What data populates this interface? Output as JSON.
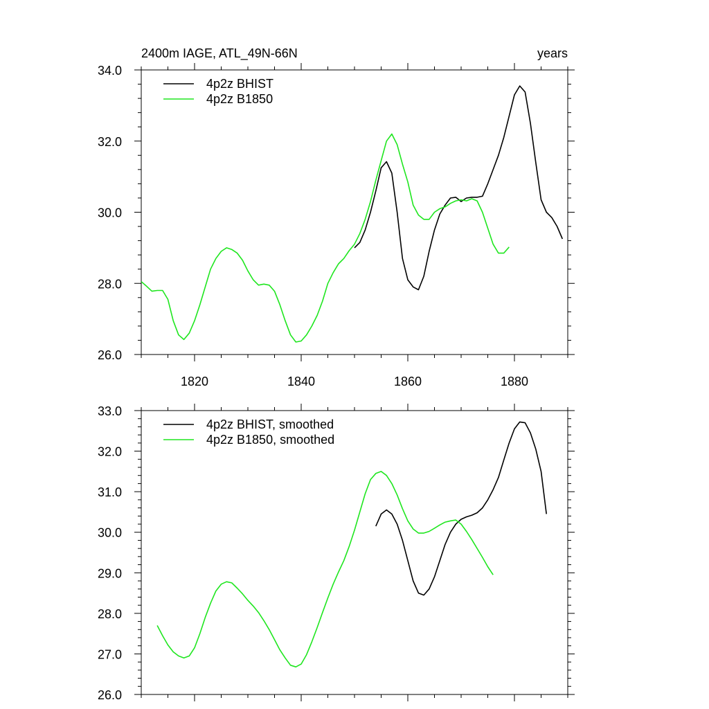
{
  "chart_data": [
    {
      "type": "line",
      "title": "2400m IAGE, ATL_49N-66N",
      "title_right": "years",
      "xlim": [
        1810,
        1890
      ],
      "ylim": [
        26.0,
        34.0
      ],
      "xticks": [
        1820,
        1840,
        1860,
        1880
      ],
      "xtick_labels": [
        "1820",
        "1840",
        "1860",
        "1880"
      ],
      "yticks": [
        26.0,
        28.0,
        30.0,
        32.0,
        34.0
      ],
      "ytick_labels": [
        "26.0",
        "28.0",
        "30.0",
        "32.0",
        "34.0"
      ],
      "legend_position": "top-left",
      "series": [
        {
          "name": "4p2z BHIST",
          "color": "#000000",
          "x": [
            1850,
            1851,
            1852,
            1853,
            1854,
            1855,
            1856,
            1857,
            1858,
            1859,
            1860,
            1861,
            1862,
            1863,
            1864,
            1865,
            1866,
            1867,
            1868,
            1869,
            1870,
            1871,
            1872,
            1873,
            1874,
            1875,
            1876,
            1877,
            1878,
            1879,
            1880,
            1881,
            1882,
            1883,
            1884,
            1885,
            1886,
            1887,
            1888,
            1889
          ],
          "values": [
            29.0,
            29.15,
            29.5,
            30.0,
            30.6,
            31.25,
            31.42,
            31.1,
            30.0,
            28.7,
            28.1,
            27.9,
            27.82,
            28.2,
            28.9,
            29.5,
            29.95,
            30.2,
            30.4,
            30.42,
            30.3,
            30.4,
            30.42,
            30.42,
            30.45,
            30.8,
            31.2,
            31.6,
            32.1,
            32.7,
            33.3,
            33.55,
            33.38,
            32.5,
            31.4,
            30.35,
            30.0,
            29.85,
            29.6,
            29.25
          ]
        },
        {
          "name": "4p2z B1850",
          "color": "#1ee61e",
          "x": [
            1810,
            1811,
            1812,
            1813,
            1814,
            1815,
            1816,
            1817,
            1818,
            1819,
            1820,
            1821,
            1822,
            1823,
            1824,
            1825,
            1826,
            1827,
            1828,
            1829,
            1830,
            1831,
            1832,
            1833,
            1834,
            1835,
            1836,
            1837,
            1838,
            1839,
            1840,
            1841,
            1842,
            1843,
            1844,
            1845,
            1846,
            1847,
            1848,
            1849,
            1850,
            1851,
            1852,
            1853,
            1854,
            1855,
            1856,
            1857,
            1858,
            1859,
            1860,
            1861,
            1862,
            1863,
            1864,
            1865,
            1866,
            1867,
            1868,
            1869,
            1870,
            1871,
            1872,
            1873,
            1874,
            1875,
            1876,
            1877,
            1878,
            1879
          ],
          "values": [
            28.05,
            27.92,
            27.78,
            27.8,
            27.8,
            27.55,
            26.95,
            26.55,
            26.42,
            26.6,
            26.95,
            27.4,
            27.9,
            28.4,
            28.7,
            28.9,
            29.0,
            28.95,
            28.85,
            28.65,
            28.35,
            28.1,
            27.95,
            27.98,
            27.95,
            27.78,
            27.4,
            26.95,
            26.55,
            26.35,
            26.38,
            26.55,
            26.8,
            27.1,
            27.5,
            28.0,
            28.3,
            28.55,
            28.7,
            28.92,
            29.1,
            29.4,
            29.8,
            30.3,
            30.9,
            31.45,
            32.0,
            32.2,
            31.9,
            31.35,
            30.85,
            30.2,
            29.92,
            29.8,
            29.8,
            30.0,
            30.1,
            30.15,
            30.25,
            30.32,
            30.35,
            30.32,
            30.38,
            30.32,
            30.0,
            29.55,
            29.1,
            28.85,
            28.85,
            29.02
          ]
        }
      ]
    },
    {
      "type": "line",
      "xlim": [
        1810,
        1890
      ],
      "ylim": [
        26.0,
        33.0
      ],
      "xticks": [
        1820,
        1840,
        1860,
        1880
      ],
      "yticks": [
        26.0,
        27.0,
        28.0,
        29.0,
        30.0,
        31.0,
        32.0,
        33.0
      ],
      "ytick_labels": [
        "26.0",
        "27.0",
        "28.0",
        "29.0",
        "30.0",
        "31.0",
        "32.0",
        "33.0"
      ],
      "legend_position": "top-left",
      "series": [
        {
          "name": "4p2z BHIST, smoothed",
          "color": "#000000",
          "x": [
            1854,
            1855,
            1856,
            1857,
            1858,
            1859,
            1860,
            1861,
            1862,
            1863,
            1864,
            1865,
            1866,
            1867,
            1868,
            1869,
            1870,
            1871,
            1872,
            1873,
            1874,
            1875,
            1876,
            1877,
            1878,
            1879,
            1880,
            1881,
            1882,
            1883,
            1884,
            1885,
            1886
          ],
          "values": [
            30.15,
            30.45,
            30.55,
            30.45,
            30.2,
            29.8,
            29.3,
            28.8,
            28.5,
            28.45,
            28.6,
            28.9,
            29.3,
            29.7,
            30.0,
            30.2,
            30.32,
            30.38,
            30.42,
            30.48,
            30.6,
            30.8,
            31.05,
            31.35,
            31.78,
            32.2,
            32.55,
            32.72,
            32.7,
            32.45,
            32.05,
            31.5,
            30.45
          ]
        },
        {
          "name": "4p2z B1850, smoothed",
          "color": "#1ee61e",
          "x": [
            1813,
            1814,
            1815,
            1816,
            1817,
            1818,
            1819,
            1820,
            1821,
            1822,
            1823,
            1824,
            1825,
            1826,
            1827,
            1828,
            1829,
            1830,
            1831,
            1832,
            1833,
            1834,
            1835,
            1836,
            1837,
            1838,
            1839,
            1840,
            1841,
            1842,
            1843,
            1844,
            1845,
            1846,
            1847,
            1848,
            1849,
            1850,
            1851,
            1852,
            1853,
            1854,
            1855,
            1856,
            1857,
            1858,
            1859,
            1860,
            1861,
            1862,
            1863,
            1864,
            1865,
            1866,
            1867,
            1868,
            1869,
            1870,
            1871,
            1872,
            1873,
            1874,
            1875,
            1876
          ],
          "values": [
            27.7,
            27.45,
            27.22,
            27.05,
            26.95,
            26.9,
            26.95,
            27.15,
            27.5,
            27.9,
            28.25,
            28.55,
            28.72,
            28.78,
            28.75,
            28.62,
            28.48,
            28.32,
            28.18,
            28.02,
            27.82,
            27.6,
            27.35,
            27.1,
            26.9,
            26.72,
            26.68,
            26.75,
            26.98,
            27.3,
            27.65,
            28.02,
            28.38,
            28.72,
            29.02,
            29.3,
            29.65,
            30.05,
            30.5,
            30.95,
            31.3,
            31.45,
            31.5,
            31.4,
            31.2,
            30.92,
            30.58,
            30.28,
            30.08,
            29.98,
            29.98,
            30.02,
            30.1,
            30.18,
            30.25,
            30.28,
            30.3,
            30.2,
            30.02,
            29.82,
            29.6,
            29.38,
            29.15,
            28.95
          ]
        }
      ]
    }
  ]
}
